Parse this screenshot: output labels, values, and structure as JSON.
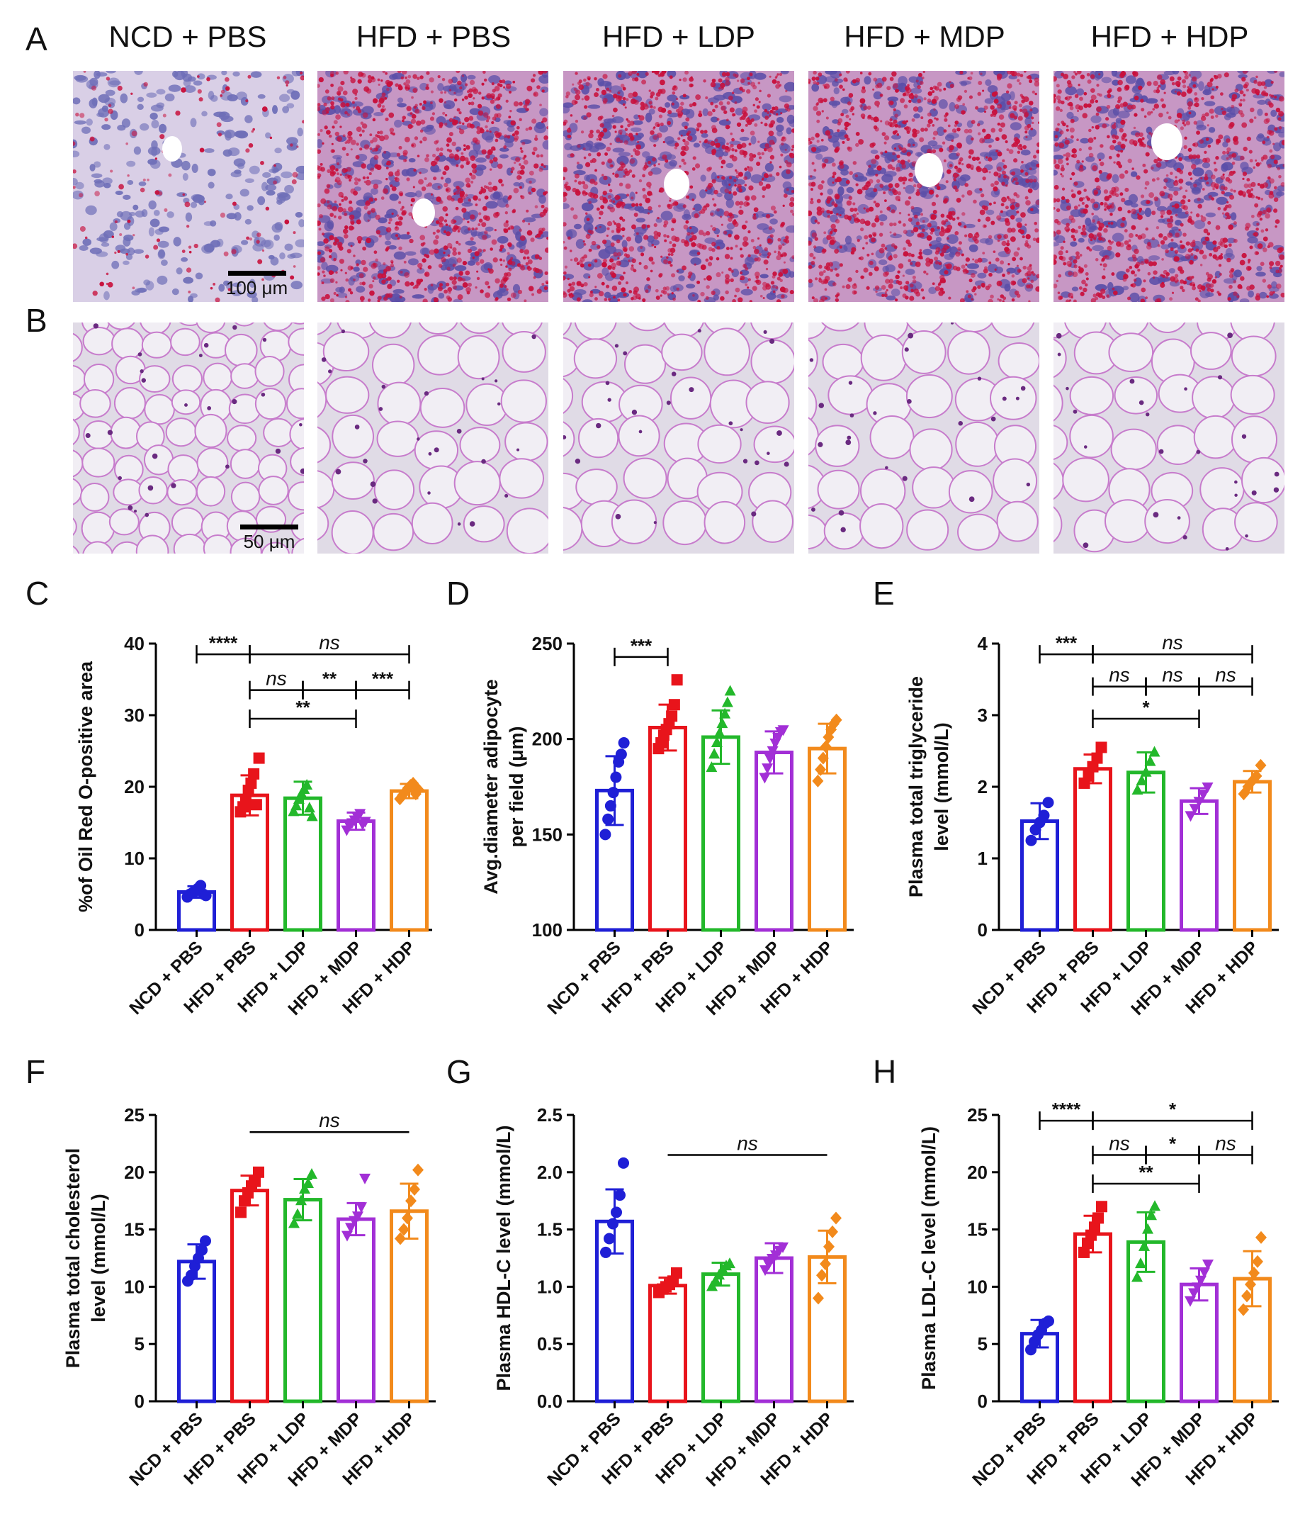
{
  "panels": {
    "A": "A",
    "B": "B",
    "C": "C",
    "D": "D",
    "E": "E",
    "F": "F",
    "G": "G",
    "H": "H"
  },
  "groups": [
    "NCD + PBS",
    "HFD + PBS",
    "HFD + LDP",
    "HFD + MDP",
    "HFD + HDP"
  ],
  "scale_bars": {
    "A": "100 μm",
    "B": "50 μm"
  },
  "colors": {
    "NCD + PBS": "#1f1fd6",
    "HFD + PBS": "#e8141b",
    "HFD + LDP": "#23b82b",
    "HFD + MDP": "#a22fd6",
    "HFD + HDP": "#f28a1c"
  },
  "chart_data": [
    {
      "id": "C",
      "type": "bar",
      "categories": [
        "NCD + PBS",
        "HFD + PBS",
        "HFD + LDP",
        "HFD + MDP",
        "HFD + HDP"
      ],
      "values": [
        5.3,
        18.8,
        18.4,
        15.2,
        19.4
      ],
      "sd": [
        0.8,
        2.8,
        2.3,
        1.2,
        1.0
      ],
      "points": [
        [
          4.6,
          5.0,
          5.2,
          5.5,
          5.8,
          6.2,
          5.0,
          4.8
        ],
        [
          16.5,
          17.2,
          18.0,
          19.5,
          20.5,
          21.8,
          17.5,
          24.0
        ],
        [
          16.5,
          17.3,
          18.2,
          19.0,
          19.6,
          20.2,
          17.0,
          15.8
        ],
        [
          14.0,
          14.6,
          15.0,
          15.4,
          15.8,
          16.3,
          14.8,
          15.2
        ],
        [
          18.3,
          18.8,
          19.3,
          19.8,
          20.2,
          20.5,
          19.0,
          19.6
        ]
      ],
      "ylabel": "%of Oil Red O-positive area",
      "ylim": [
        0,
        40
      ],
      "yticks": [
        0,
        10,
        20,
        30,
        40
      ],
      "sig": [
        {
          "from": 0,
          "to": 1,
          "label": "****",
          "y": 38.5
        },
        {
          "from": 1,
          "to": 4,
          "label": "ns",
          "y": 38.5
        },
        {
          "from": 1,
          "to": 2,
          "label": "ns",
          "y": 33.5
        },
        {
          "from": 2,
          "to": 3,
          "label": "**",
          "y": 33.5
        },
        {
          "from": 3,
          "to": 4,
          "label": "***",
          "y": 33.5
        },
        {
          "from": 1,
          "to": 3,
          "label": "**",
          "y": 29.5
        }
      ]
    },
    {
      "id": "D",
      "type": "bar",
      "categories": [
        "NCD + PBS",
        "HFD + PBS",
        "HFD + LDP",
        "HFD + MDP",
        "HFD + HDP"
      ],
      "values": [
        173,
        206,
        201,
        193,
        195
      ],
      "sd": [
        18,
        12,
        14,
        11,
        13
      ],
      "points": [
        [
          150,
          158,
          165,
          172,
          180,
          188,
          192,
          198
        ],
        [
          195,
          198,
          202,
          205,
          208,
          212,
          218,
          231
        ],
        [
          185,
          192,
          198,
          203,
          208,
          213,
          219,
          225
        ],
        [
          180,
          185,
          190,
          194,
          198,
          201,
          204,
          205
        ],
        [
          178,
          184,
          190,
          196,
          201,
          205,
          208,
          210
        ]
      ],
      "ylabel": "Avg.diameter adipocyte per field (μm)",
      "ylim": [
        100,
        250
      ],
      "yticks": [
        100,
        150,
        200,
        250
      ],
      "sig": [
        {
          "from": 0,
          "to": 1,
          "label": "***",
          "y": 243
        }
      ]
    },
    {
      "id": "E",
      "type": "bar",
      "categories": [
        "NCD + PBS",
        "HFD + PBS",
        "HFD + LDP",
        "HFD + MDP",
        "HFD + HDP"
      ],
      "values": [
        1.52,
        2.25,
        2.2,
        1.8,
        2.07
      ],
      "sd": [
        0.25,
        0.2,
        0.28,
        0.18,
        0.15
      ],
      "points": [
        [
          1.25,
          1.4,
          1.5,
          1.6,
          1.78
        ],
        [
          2.05,
          2.15,
          2.28,
          2.4,
          2.55
        ],
        [
          1.95,
          2.08,
          2.2,
          2.35,
          2.48
        ],
        [
          1.6,
          1.7,
          1.8,
          1.9,
          2.0
        ],
        [
          1.9,
          2.0,
          2.08,
          2.15,
          2.3
        ]
      ],
      "ylabel": "Plasma total triglyceride level (mmol/L)",
      "ylim": [
        0,
        4
      ],
      "yticks": [
        0,
        1,
        2,
        3,
        4
      ],
      "sig": [
        {
          "from": 0,
          "to": 1,
          "label": "***",
          "y": 3.85
        },
        {
          "from": 1,
          "to": 4,
          "label": "ns",
          "y": 3.85
        },
        {
          "from": 1,
          "to": 2,
          "label": "ns",
          "y": 3.4
        },
        {
          "from": 2,
          "to": 3,
          "label": "ns",
          "y": 3.4
        },
        {
          "from": 3,
          "to": 4,
          "label": "ns",
          "y": 3.4
        },
        {
          "from": 1,
          "to": 3,
          "label": "*",
          "y": 2.95
        }
      ]
    },
    {
      "id": "F",
      "type": "bar",
      "categories": [
        "NCD + PBS",
        "HFD + PBS",
        "HFD + LDP",
        "HFD + MDP",
        "HFD + HDP"
      ],
      "values": [
        12.2,
        18.4,
        17.6,
        15.9,
        16.6
      ],
      "sd": [
        1.5,
        1.3,
        1.8,
        1.4,
        2.4
      ],
      "points": [
        [
          10.5,
          11.0,
          11.8,
          12.5,
          13.2,
          14.0
        ],
        [
          16.5,
          17.5,
          18.2,
          18.8,
          19.2,
          20.0
        ],
        [
          15.5,
          16.3,
          17.5,
          18.5,
          19.0,
          19.8
        ],
        [
          14.5,
          15.2,
          15.8,
          16.2,
          17.0,
          19.5
        ],
        [
          14.2,
          15.0,
          16.0,
          17.5,
          18.5,
          20.2
        ]
      ],
      "ylabel": "Plasma total cholesterol level (mmol/L)",
      "ylim": [
        0,
        25
      ],
      "yticks": [
        0,
        5,
        10,
        15,
        20,
        25
      ],
      "sig": [
        {
          "from": 1,
          "to": 4,
          "label": "ns",
          "y": 23.5,
          "nobrackets": true
        }
      ]
    },
    {
      "id": "G",
      "type": "bar",
      "categories": [
        "NCD + PBS",
        "HFD + PBS",
        "HFD + LDP",
        "HFD + MDP",
        "HFD + HDP"
      ],
      "values": [
        1.57,
        1.01,
        1.11,
        1.25,
        1.26
      ],
      "sd": [
        0.28,
        0.07,
        0.1,
        0.13,
        0.23
      ],
      "points": [
        [
          1.3,
          1.42,
          1.55,
          1.65,
          1.8,
          2.08
        ],
        [
          0.95,
          0.98,
          1.0,
          1.02,
          1.05,
          1.12
        ],
        [
          1.0,
          1.05,
          1.1,
          1.15,
          1.18,
          1.2
        ],
        [
          1.15,
          1.2,
          1.25,
          1.28,
          1.32,
          1.35
        ],
        [
          0.9,
          1.1,
          1.2,
          1.35,
          1.48,
          1.6
        ]
      ],
      "ylabel": "Plasma HDL-C level (mmol/L)",
      "ylim": [
        0,
        2.5
      ],
      "yticks": [
        0.0,
        0.5,
        1.0,
        1.5,
        2.0,
        2.5
      ],
      "sig": [
        {
          "from": 1,
          "to": 4,
          "label": "ns",
          "y": 2.15,
          "nobrackets": true
        }
      ]
    },
    {
      "id": "H",
      "type": "bar",
      "categories": [
        "NCD + PBS",
        "HFD + PBS",
        "HFD + LDP",
        "HFD + MDP",
        "HFD + HDP"
      ],
      "values": [
        5.9,
        14.6,
        13.9,
        10.2,
        10.7
      ],
      "sd": [
        1.2,
        1.6,
        2.6,
        1.4,
        2.4
      ],
      "points": [
        [
          4.5,
          5.2,
          5.8,
          6.2,
          6.8,
          7.0
        ],
        [
          13.0,
          13.8,
          14.5,
          15.2,
          16.0,
          17.0
        ],
        [
          10.8,
          12.0,
          13.5,
          15.0,
          16.2,
          17.0
        ],
        [
          8.8,
          9.5,
          10.0,
          10.6,
          11.3,
          12.0
        ],
        [
          8.0,
          9.2,
          10.2,
          11.2,
          12.2,
          14.3
        ]
      ],
      "ylabel": "Plasma LDL-C level (mmol/L)",
      "ylim": [
        0,
        25
      ],
      "yticks": [
        0,
        5,
        10,
        15,
        20,
        25
      ],
      "sig": [
        {
          "from": 0,
          "to": 1,
          "label": "****",
          "y": 24.5
        },
        {
          "from": 1,
          "to": 4,
          "label": "*",
          "y": 24.5
        },
        {
          "from": 1,
          "to": 2,
          "label": "ns",
          "y": 21.5
        },
        {
          "from": 2,
          "to": 3,
          "label": "*",
          "y": 21.5
        },
        {
          "from": 3,
          "to": 4,
          "label": "ns",
          "y": 21.5
        },
        {
          "from": 1,
          "to": 3,
          "label": "**",
          "y": 19.0
        }
      ]
    }
  ]
}
